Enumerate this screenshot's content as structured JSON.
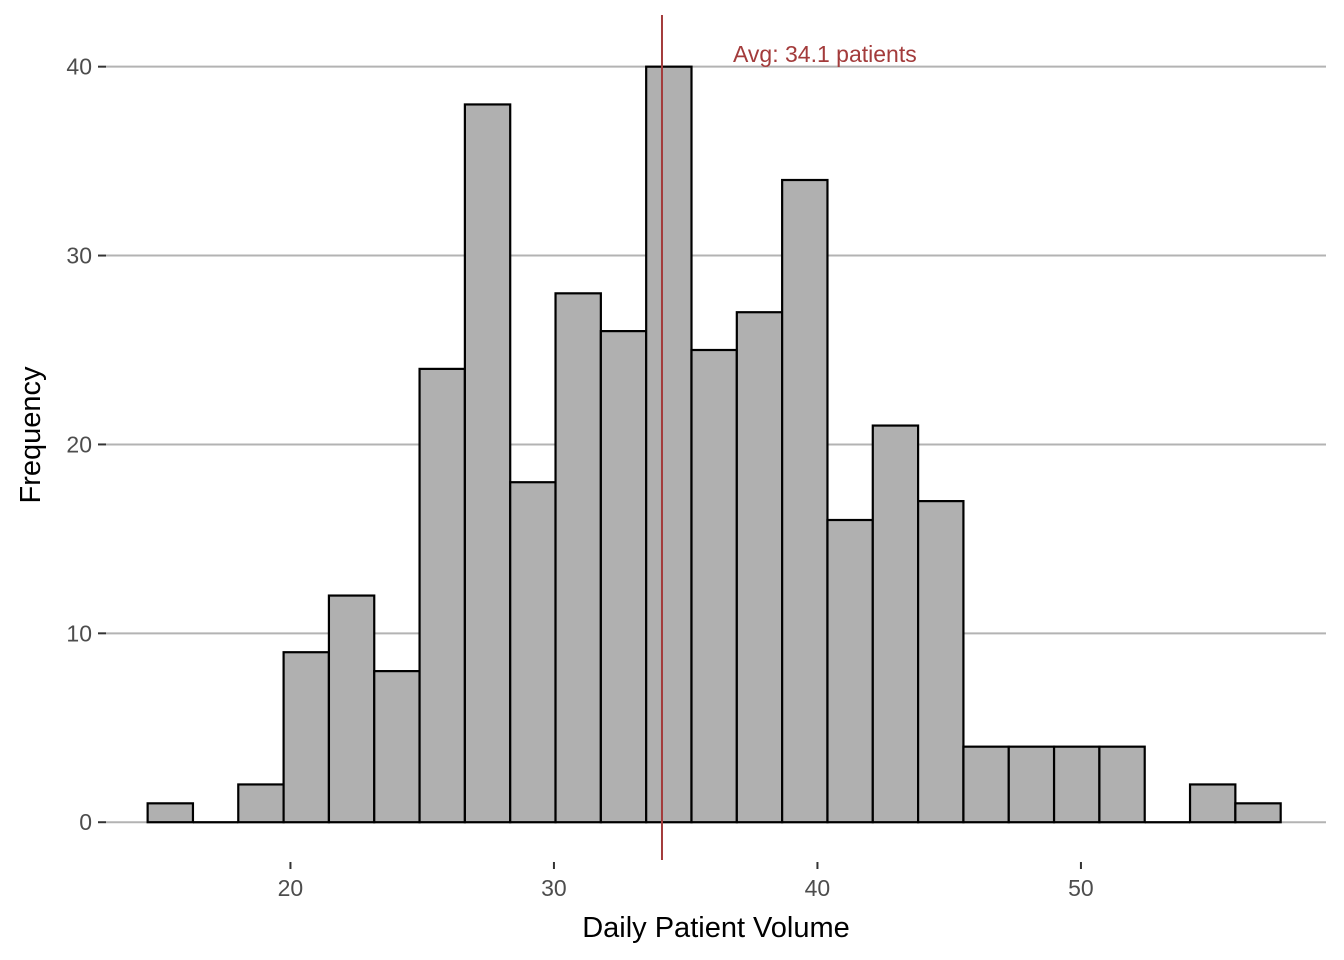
{
  "chart_data": {
    "type": "bar",
    "subtype": "histogram",
    "xlabel": "Daily Patient Volume",
    "ylabel": "Frequency",
    "x_ticks": [
      20,
      30,
      40,
      50
    ],
    "y_ticks": [
      0,
      10,
      20,
      30,
      40
    ],
    "xlim": [
      13.0,
      59.3
    ],
    "ylim": [
      -2,
      43
    ],
    "grid": "horizontal major",
    "bin_width": 1.72,
    "bins": [
      {
        "start": 14.58,
        "end": 16.3,
        "count": 1
      },
      {
        "start": 16.3,
        "end": 18.02,
        "count": 0
      },
      {
        "start": 18.02,
        "end": 19.74,
        "count": 2
      },
      {
        "start": 19.74,
        "end": 21.46,
        "count": 9
      },
      {
        "start": 21.46,
        "end": 23.18,
        "count": 12
      },
      {
        "start": 23.18,
        "end": 24.9,
        "count": 8
      },
      {
        "start": 24.9,
        "end": 26.62,
        "count": 24
      },
      {
        "start": 26.62,
        "end": 28.34,
        "count": 38
      },
      {
        "start": 28.34,
        "end": 30.06,
        "count": 18
      },
      {
        "start": 30.06,
        "end": 31.78,
        "count": 28
      },
      {
        "start": 31.78,
        "end": 33.5,
        "count": 26
      },
      {
        "start": 33.5,
        "end": 35.22,
        "count": 40
      },
      {
        "start": 35.22,
        "end": 36.94,
        "count": 25
      },
      {
        "start": 36.94,
        "end": 38.66,
        "count": 27
      },
      {
        "start": 38.66,
        "end": 40.38,
        "count": 34
      },
      {
        "start": 40.38,
        "end": 42.1,
        "count": 16
      },
      {
        "start": 42.1,
        "end": 43.82,
        "count": 21
      },
      {
        "start": 43.82,
        "end": 45.54,
        "count": 17
      },
      {
        "start": 45.54,
        "end": 47.26,
        "count": 4
      },
      {
        "start": 47.26,
        "end": 48.98,
        "count": 4
      },
      {
        "start": 48.98,
        "end": 50.7,
        "count": 4
      },
      {
        "start": 50.7,
        "end": 52.42,
        "count": 4
      },
      {
        "start": 52.42,
        "end": 54.14,
        "count": 0
      },
      {
        "start": 54.14,
        "end": 55.86,
        "count": 2
      },
      {
        "start": 55.86,
        "end": 57.58,
        "count": 1
      }
    ],
    "reference_line": {
      "x": 34.1,
      "color": "#a33b3b"
    },
    "annotation": {
      "text": "Avg: 34.1 patients",
      "color": "#a33b3b"
    }
  }
}
